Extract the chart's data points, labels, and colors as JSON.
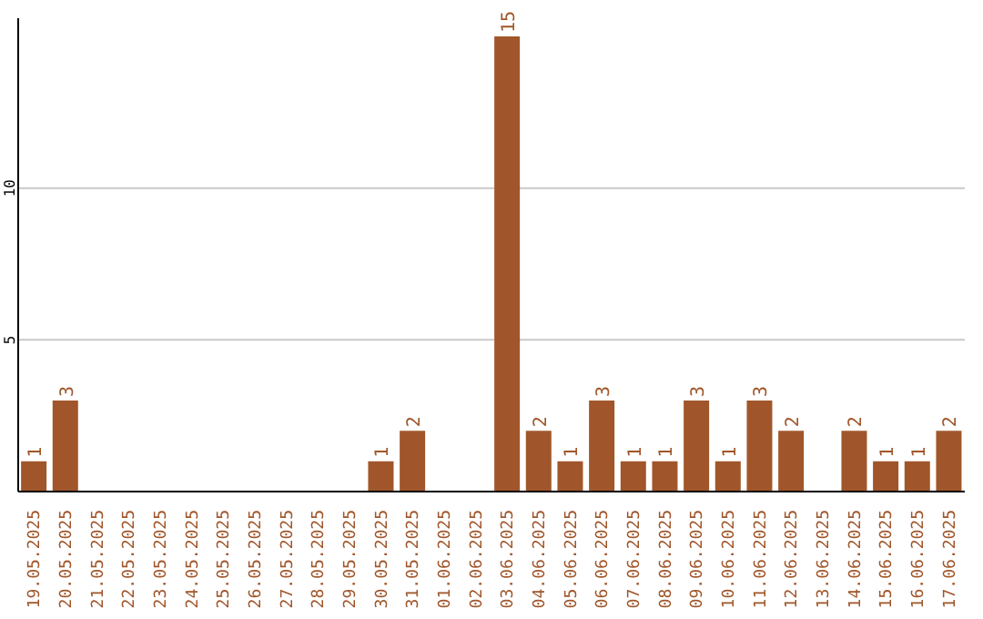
{
  "chart_data": {
    "type": "bar",
    "categories": [
      "19.05.2025",
      "20.05.2025",
      "21.05.2025",
      "22.05.2025",
      "23.05.2025",
      "24.05.2025",
      "25.05.2025",
      "26.05.2025",
      "27.05.2025",
      "28.05.2025",
      "29.05.2025",
      "30.05.2025",
      "31.05.2025",
      "01.06.2025",
      "02.06.2025",
      "03.06.2025",
      "04.06.2025",
      "05.06.2025",
      "06.06.2025",
      "07.06.2025",
      "08.06.2025",
      "09.06.2025",
      "10.06.2025",
      "11.06.2025",
      "12.06.2025",
      "13.06.2025",
      "14.06.2025",
      "15.06.2025",
      "16.06.2025",
      "17.06.2025"
    ],
    "values": [
      1,
      3,
      0,
      0,
      0,
      0,
      0,
      0,
      0,
      0,
      0,
      1,
      2,
      0,
      0,
      15,
      2,
      1,
      3,
      1,
      1,
      3,
      1,
      3,
      2,
      0,
      2,
      1,
      1,
      2
    ],
    "value_labels": [
      "1",
      "3",
      null,
      null,
      null,
      null,
      null,
      null,
      null,
      null,
      null,
      "1",
      "2",
      null,
      null,
      "15",
      "2",
      "1",
      "3",
      "1",
      "1",
      "3",
      "1",
      "3",
      "2",
      null,
      "2",
      "1",
      "1",
      "2"
    ],
    "color": "#a0562a",
    "ylim": [
      0,
      15.6
    ],
    "yticks": [
      5,
      10
    ],
    "grid": "y"
  }
}
